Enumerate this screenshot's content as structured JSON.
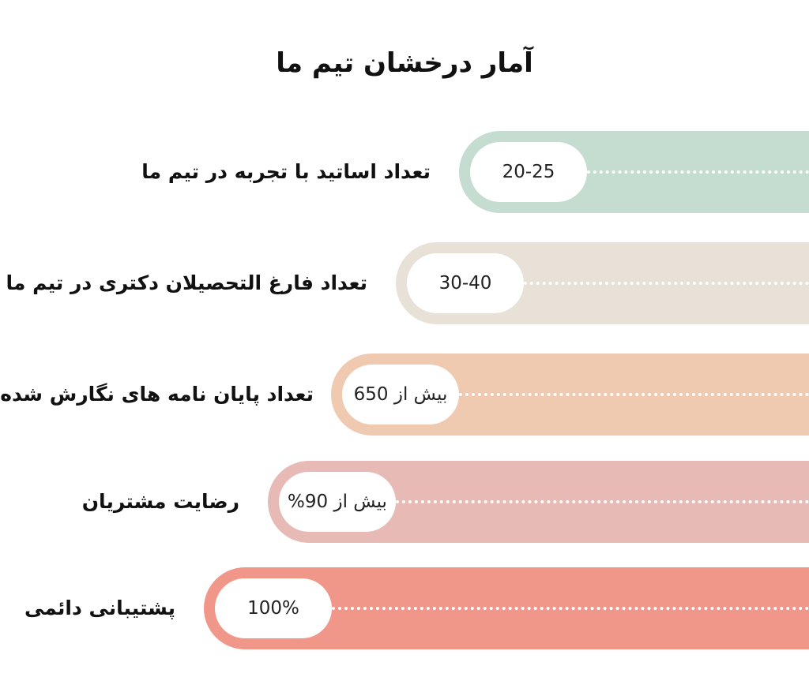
{
  "title": "آمار درخشان تیم ما",
  "chart_data": {
    "type": "bar",
    "title": "آمار درخشان تیم ما",
    "orientation": "horizontal",
    "categories": [
      "تعداد اساتید با تجربه در تیم ما",
      "تعداد فارغ التحصیلان دکتری در تیم ما",
      "تعداد پایان نامه های نگارش شده",
      "رضایت مشتریان",
      "پشتیبانی دائمی"
    ],
    "value_labels": [
      "20-25",
      "30-40",
      "بیش از 650",
      "بیش از 90%",
      "100%"
    ],
    "values": [
      20,
      30,
      650,
      90,
      100
    ],
    "colors": [
      "#c5ddd0",
      "#e7e1d7",
      "#f0cab0",
      "#e7bab5",
      "#f0978a"
    ],
    "grid": false,
    "legend": "none"
  }
}
